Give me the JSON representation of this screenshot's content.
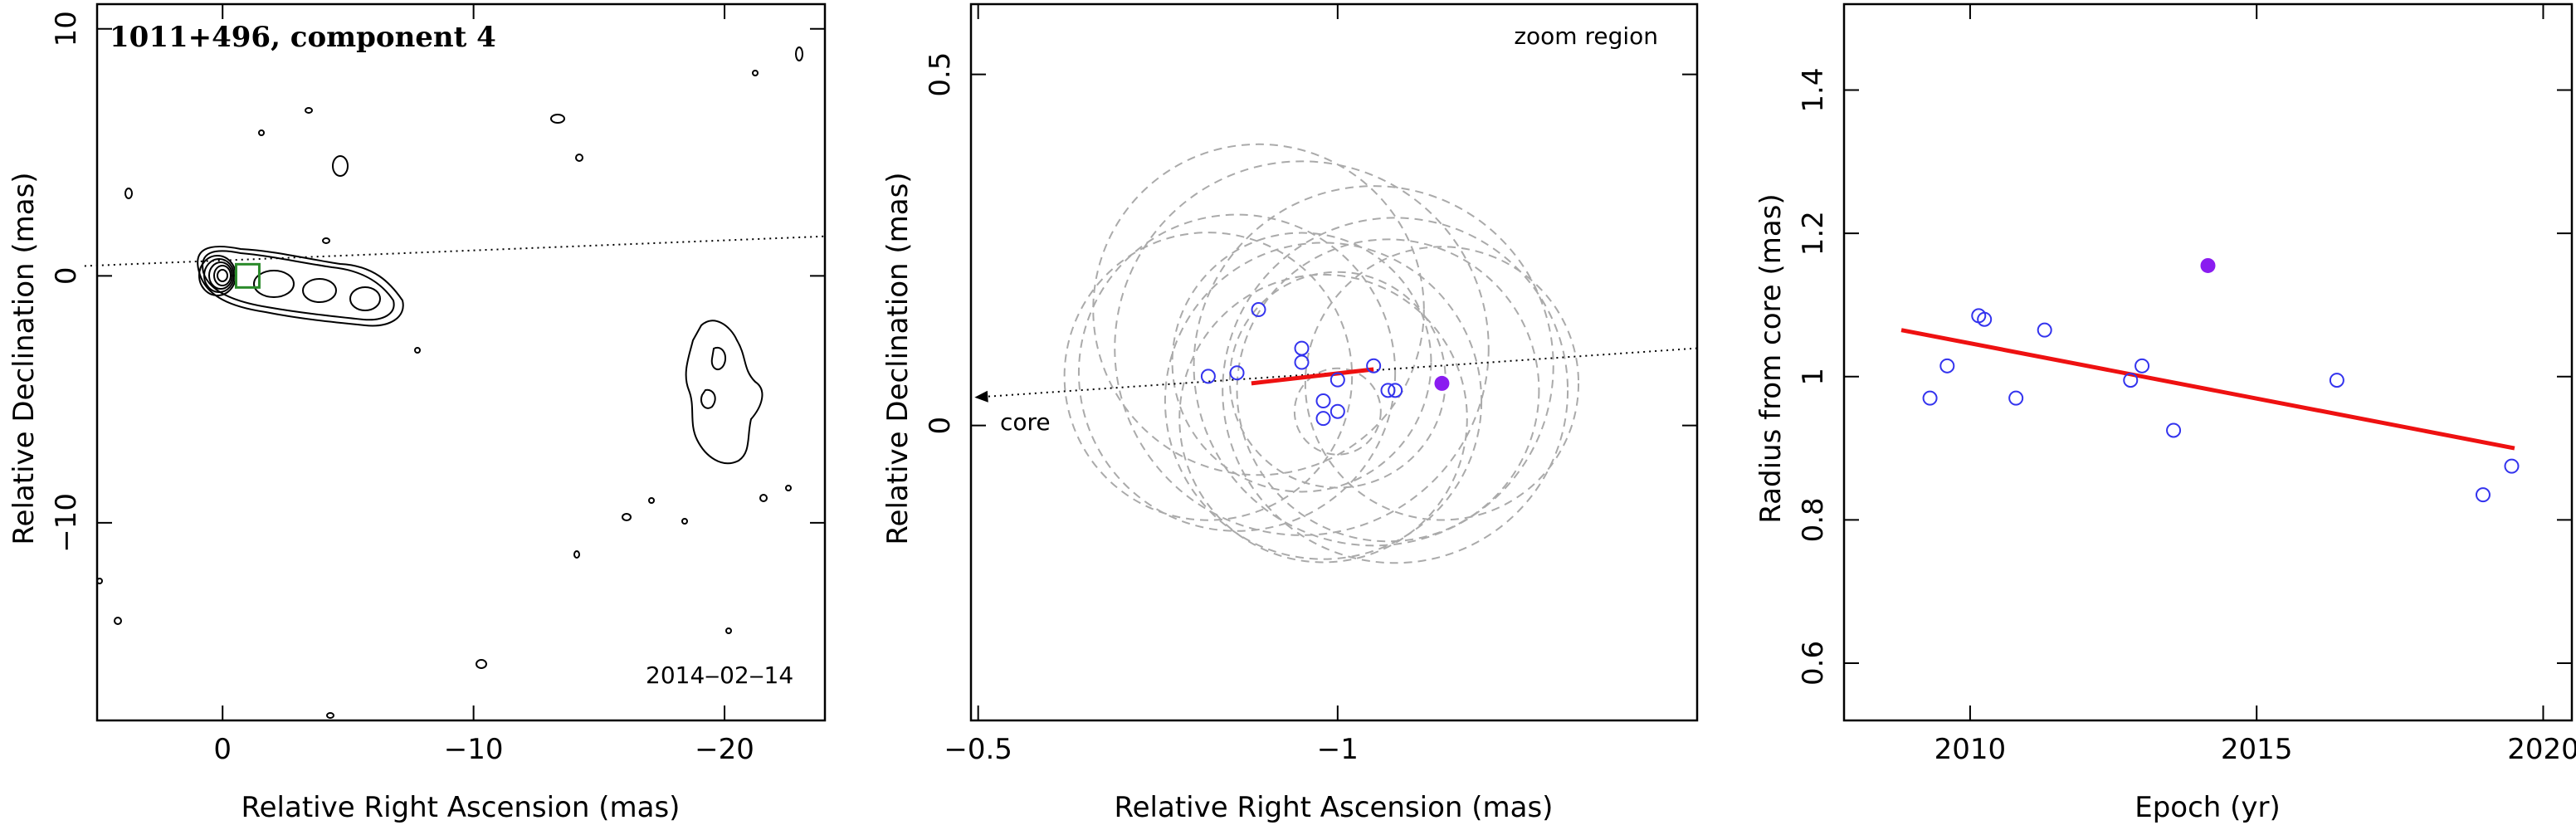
{
  "chart_data": [
    {
      "type": "contour",
      "title": "1011+496, component 4",
      "date_label": "2014‒02‒14",
      "xlabel": "Relative Right Ascension (mas)",
      "ylabel": "Relative Declination (mas)",
      "xlim": [
        5,
        -24
      ],
      "ylim": [
        -18,
        11
      ],
      "xticks": [
        0,
        -10,
        -20
      ],
      "xtick_labels": [
        "0",
        "−10",
        "−20"
      ],
      "yticks": [
        10,
        0,
        -10
      ],
      "ytick_labels": [
        "10",
        "0",
        "−10"
      ],
      "component_box": {
        "x": -1.0,
        "y": 0.0,
        "color": "#2a8a2a"
      },
      "direction_line": {
        "x": [
          5.5,
          -24
        ],
        "y": [
          0.4,
          1.6
        ]
      },
      "grid": false
    },
    {
      "type": "scatter",
      "xlabel": "Relative Right Ascension (mas)",
      "ylabel": "Relative Declination (mas)",
      "annotation": "zoom region",
      "core_label": "core",
      "xlim": [
        -0.49,
        -1.5
      ],
      "ylim": [
        -0.42,
        0.6
      ],
      "xticks": [
        -0.5,
        -1
      ],
      "xtick_labels": [
        "−0.5",
        "−1"
      ],
      "yticks": [
        0.5,
        0
      ],
      "ytick_labels": [
        "0.5",
        "0"
      ],
      "points": [
        {
          "x": -0.82,
          "y": 0.07
        },
        {
          "x": -0.86,
          "y": 0.075
        },
        {
          "x": -0.89,
          "y": 0.165
        },
        {
          "x": -0.95,
          "y": 0.11
        },
        {
          "x": -0.95,
          "y": 0.09
        },
        {
          "x": -0.98,
          "y": 0.035
        },
        {
          "x": -0.98,
          "y": 0.01
        },
        {
          "x": -1.0,
          "y": 0.065
        },
        {
          "x": -1.0,
          "y": 0.02
        },
        {
          "x": -1.05,
          "y": 0.085
        },
        {
          "x": -1.07,
          "y": 0.05
        },
        {
          "x": -1.08,
          "y": 0.05
        }
      ],
      "highlight_point": {
        "x": -1.145,
        "y": 0.06,
        "color": "#8a1cf0"
      },
      "point_color": "#3333ee",
      "fit_line": {
        "x": [
          -0.88,
          -1.05
        ],
        "y": [
          0.06,
          0.08
        ],
        "color": "#ee1111"
      },
      "circles": [
        {
          "x": -0.82,
          "y": 0.07,
          "r": 0.2
        },
        {
          "x": -0.86,
          "y": 0.075,
          "r": 0.22
        },
        {
          "x": -0.89,
          "y": 0.165,
          "r": 0.23
        },
        {
          "x": -0.95,
          "y": 0.11,
          "r": 0.26
        },
        {
          "x": -0.95,
          "y": 0.09,
          "r": 0.18
        },
        {
          "x": -0.98,
          "y": 0.035,
          "r": 0.22
        },
        {
          "x": -0.98,
          "y": 0.01,
          "r": 0.2
        },
        {
          "x": -1.0,
          "y": 0.065,
          "r": 0.15
        },
        {
          "x": -1.0,
          "y": 0.02,
          "r": 0.06
        },
        {
          "x": -1.05,
          "y": 0.085,
          "r": 0.25
        },
        {
          "x": -1.07,
          "y": 0.05,
          "r": 0.21
        },
        {
          "x": -1.08,
          "y": 0.05,
          "r": 0.24
        },
        {
          "x": -1.145,
          "y": 0.06,
          "r": 0.19
        }
      ],
      "direction_line": {
        "x": [
          -1.5,
          -0.495
        ],
        "y": [
          0.11,
          0.04
        ]
      },
      "grid": false
    },
    {
      "type": "scatter",
      "xlabel": "Epoch (yr)",
      "ylabel": "Radius from core (mas)",
      "xlim": [
        2007.8,
        2020.5
      ],
      "ylim": [
        0.52,
        1.52
      ],
      "xticks": [
        2010,
        2015,
        2020
      ],
      "xtick_labels": [
        "2010",
        "2015",
        "2020"
      ],
      "yticks": [
        0.6,
        0.8,
        1,
        1.2,
        1.4
      ],
      "ytick_labels": [
        "0.6",
        "0.8",
        "1",
        "1.2",
        "1.4"
      ],
      "points": [
        {
          "x": 2009.3,
          "y": 0.97
        },
        {
          "x": 2009.6,
          "y": 1.015
        },
        {
          "x": 2010.15,
          "y": 1.085
        },
        {
          "x": 2010.25,
          "y": 1.08
        },
        {
          "x": 2010.8,
          "y": 0.97
        },
        {
          "x": 2011.3,
          "y": 1.065
        },
        {
          "x": 2012.8,
          "y": 0.995
        },
        {
          "x": 2013.0,
          "y": 1.015
        },
        {
          "x": 2013.55,
          "y": 0.925
        },
        {
          "x": 2016.4,
          "y": 0.995
        },
        {
          "x": 2018.95,
          "y": 0.835
        },
        {
          "x": 2019.45,
          "y": 0.875
        }
      ],
      "highlight_point": {
        "x": 2014.15,
        "y": 1.155,
        "color": "#8a1cf0"
      },
      "point_color": "#3333ee",
      "fit_line": {
        "x": [
          2008.8,
          2019.5
        ],
        "y": [
          1.065,
          0.9
        ],
        "color": "#ee1111"
      },
      "grid": false
    }
  ]
}
